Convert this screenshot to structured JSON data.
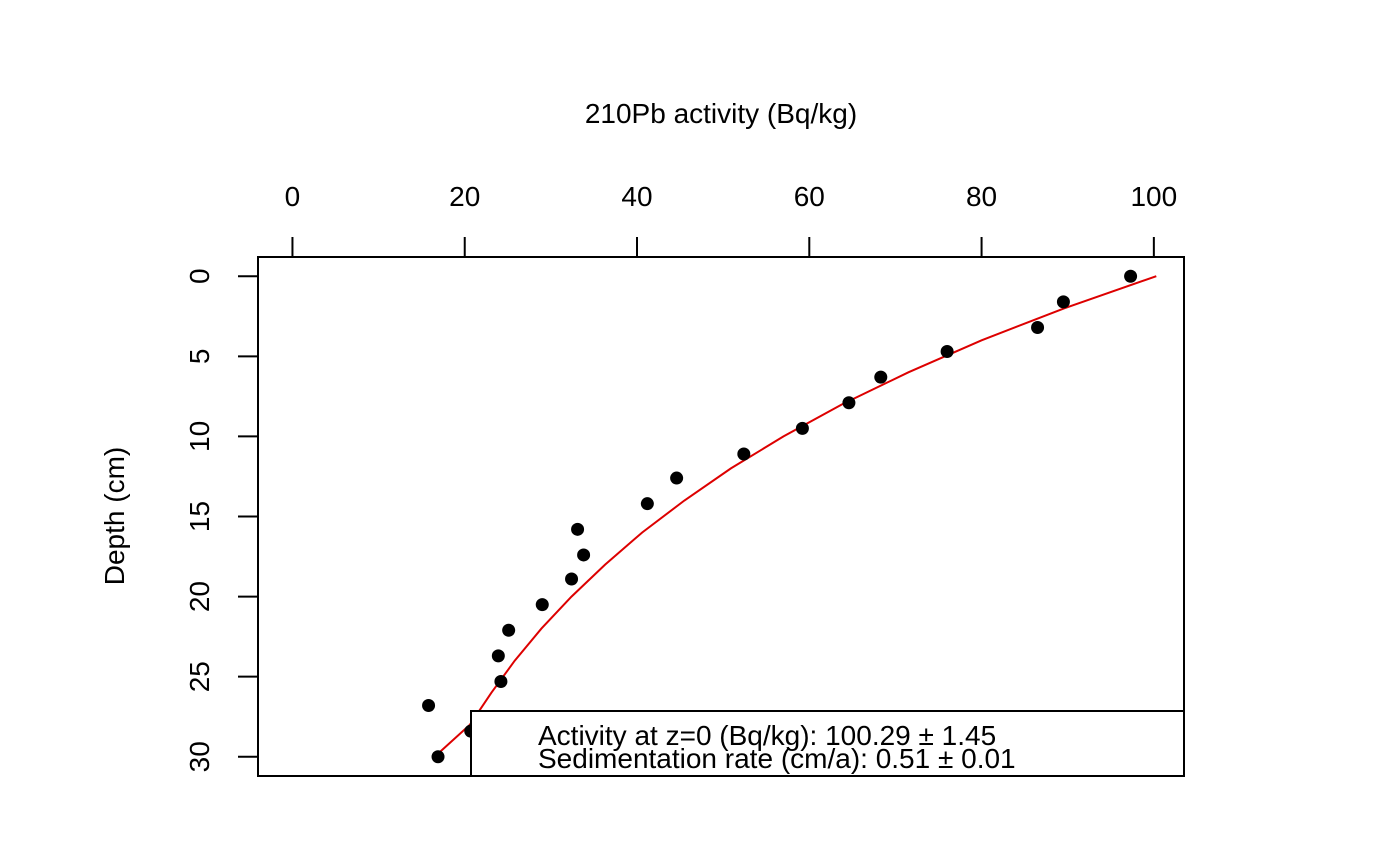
{
  "chart_data": {
    "type": "scatter",
    "title": "",
    "xlabel": "210Pb activity (Bq/kg)",
    "ylabel": "Depth (cm)",
    "xlim": [
      -4,
      103.5
    ],
    "ylim": [
      31.2,
      -1.2
    ],
    "x_ticks": [
      0,
      20,
      40,
      60,
      80,
      100
    ],
    "y_ticks": [
      0,
      5,
      10,
      15,
      20,
      25,
      30
    ],
    "x_axis_position": "top",
    "y_axis_reversed": true,
    "grid": false,
    "point_color": "#000000",
    "fit_color": "#dd0000",
    "points": [
      {
        "x": 97.3,
        "y": 0.0
      },
      {
        "x": 89.5,
        "y": 1.6
      },
      {
        "x": 86.5,
        "y": 3.2
      },
      {
        "x": 76.0,
        "y": 4.7
      },
      {
        "x": 68.3,
        "y": 6.3
      },
      {
        "x": 64.6,
        "y": 7.9
      },
      {
        "x": 59.2,
        "y": 9.5
      },
      {
        "x": 52.4,
        "y": 11.1
      },
      {
        "x": 44.6,
        "y": 12.6
      },
      {
        "x": 41.2,
        "y": 14.2
      },
      {
        "x": 33.1,
        "y": 15.8
      },
      {
        "x": 33.8,
        "y": 17.4
      },
      {
        "x": 32.4,
        "y": 18.9
      },
      {
        "x": 29.0,
        "y": 20.5
      },
      {
        "x": 25.1,
        "y": 22.1
      },
      {
        "x": 23.9,
        "y": 23.7
      },
      {
        "x": 24.2,
        "y": 25.3
      },
      {
        "x": 15.8,
        "y": 26.8
      },
      {
        "x": 20.7,
        "y": 28.4
      },
      {
        "x": 16.9,
        "y": 30.0
      }
    ],
    "fit_curve": {
      "name": "",
      "points": [
        {
          "x": 100.29,
          "y": 0
        },
        {
          "x": 89.6,
          "y": 2
        },
        {
          "x": 80.0,
          "y": 4
        },
        {
          "x": 71.5,
          "y": 6
        },
        {
          "x": 63.8,
          "y": 8
        },
        {
          "x": 57.0,
          "y": 10
        },
        {
          "x": 50.9,
          "y": 12
        },
        {
          "x": 45.5,
          "y": 14
        },
        {
          "x": 40.6,
          "y": 16
        },
        {
          "x": 36.3,
          "y": 18
        },
        {
          "x": 32.4,
          "y": 20
        },
        {
          "x": 28.9,
          "y": 22
        },
        {
          "x": 25.8,
          "y": 24
        },
        {
          "x": 23.1,
          "y": 26
        },
        {
          "x": 20.6,
          "y": 28
        },
        {
          "x": 16.5,
          "y": 30
        }
      ]
    },
    "annotations": {
      "activity_line": "Activity at z=0 (Bq/kg): 100.29 ± 1.45",
      "sedimentation_line": "Sedimentation rate (cm/a): 0.51 ± 0.01"
    }
  }
}
